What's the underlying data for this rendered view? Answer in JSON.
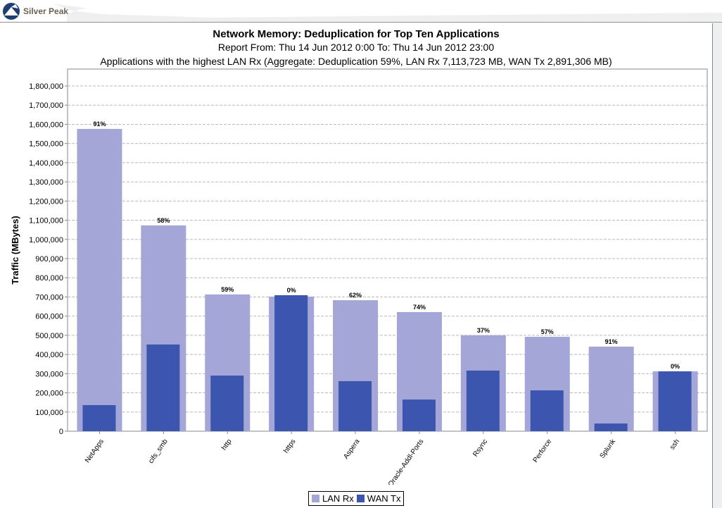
{
  "header": {
    "brand": "Silver Peak"
  },
  "colors": {
    "lan": "#a3a6d6",
    "wan": "#3c56b0"
  },
  "chart_data": {
    "type": "bar",
    "title": "Network Memory: Deduplication for Top Ten Applications",
    "subtitle": "Report From: Thu 14 Jun 2012 0:00 To: Thu 14 Jun 2012 23:00",
    "subtitle2": "Applications with the highest LAN Rx (Aggregate: Deduplication 59%, LAN Rx 7,113,723 MB, WAN Tx 2,891,306 MB)",
    "xlabel": "",
    "ylabel": "Traffic (MBytes)",
    "ylim": [
      0,
      1800000
    ],
    "yticks": [
      "0",
      "100,000",
      "200,000",
      "300,000",
      "400,000",
      "500,000",
      "600,000",
      "700,000",
      "800,000",
      "900,000",
      "1,000,000",
      "1,100,000",
      "1,200,000",
      "1,300,000",
      "1,400,000",
      "1,500,000",
      "1,600,000",
      "1,700,000",
      "1,800,000"
    ],
    "categories": [
      "NetApps",
      "cifs_smb",
      "http",
      "https",
      "Aspera",
      "Oracle-Addl-Ports",
      "Rsync",
      "Perforce",
      "Splunk",
      "ssh"
    ],
    "series": [
      {
        "name": "LAN Rx",
        "values": [
          1576000,
          1073000,
          713000,
          702000,
          683000,
          621000,
          500000,
          492000,
          441000,
          312000
        ]
      },
      {
        "name": "WAN Tx",
        "values": [
          136000,
          452000,
          290000,
          709000,
          261000,
          165000,
          316000,
          213000,
          40000,
          312000
        ]
      }
    ],
    "labels": [
      "91%",
      "58%",
      "59%",
      "0%",
      "62%",
      "74%",
      "37%",
      "57%",
      "91%",
      "0%"
    ],
    "legend": "bottom-center",
    "grid": true
  }
}
